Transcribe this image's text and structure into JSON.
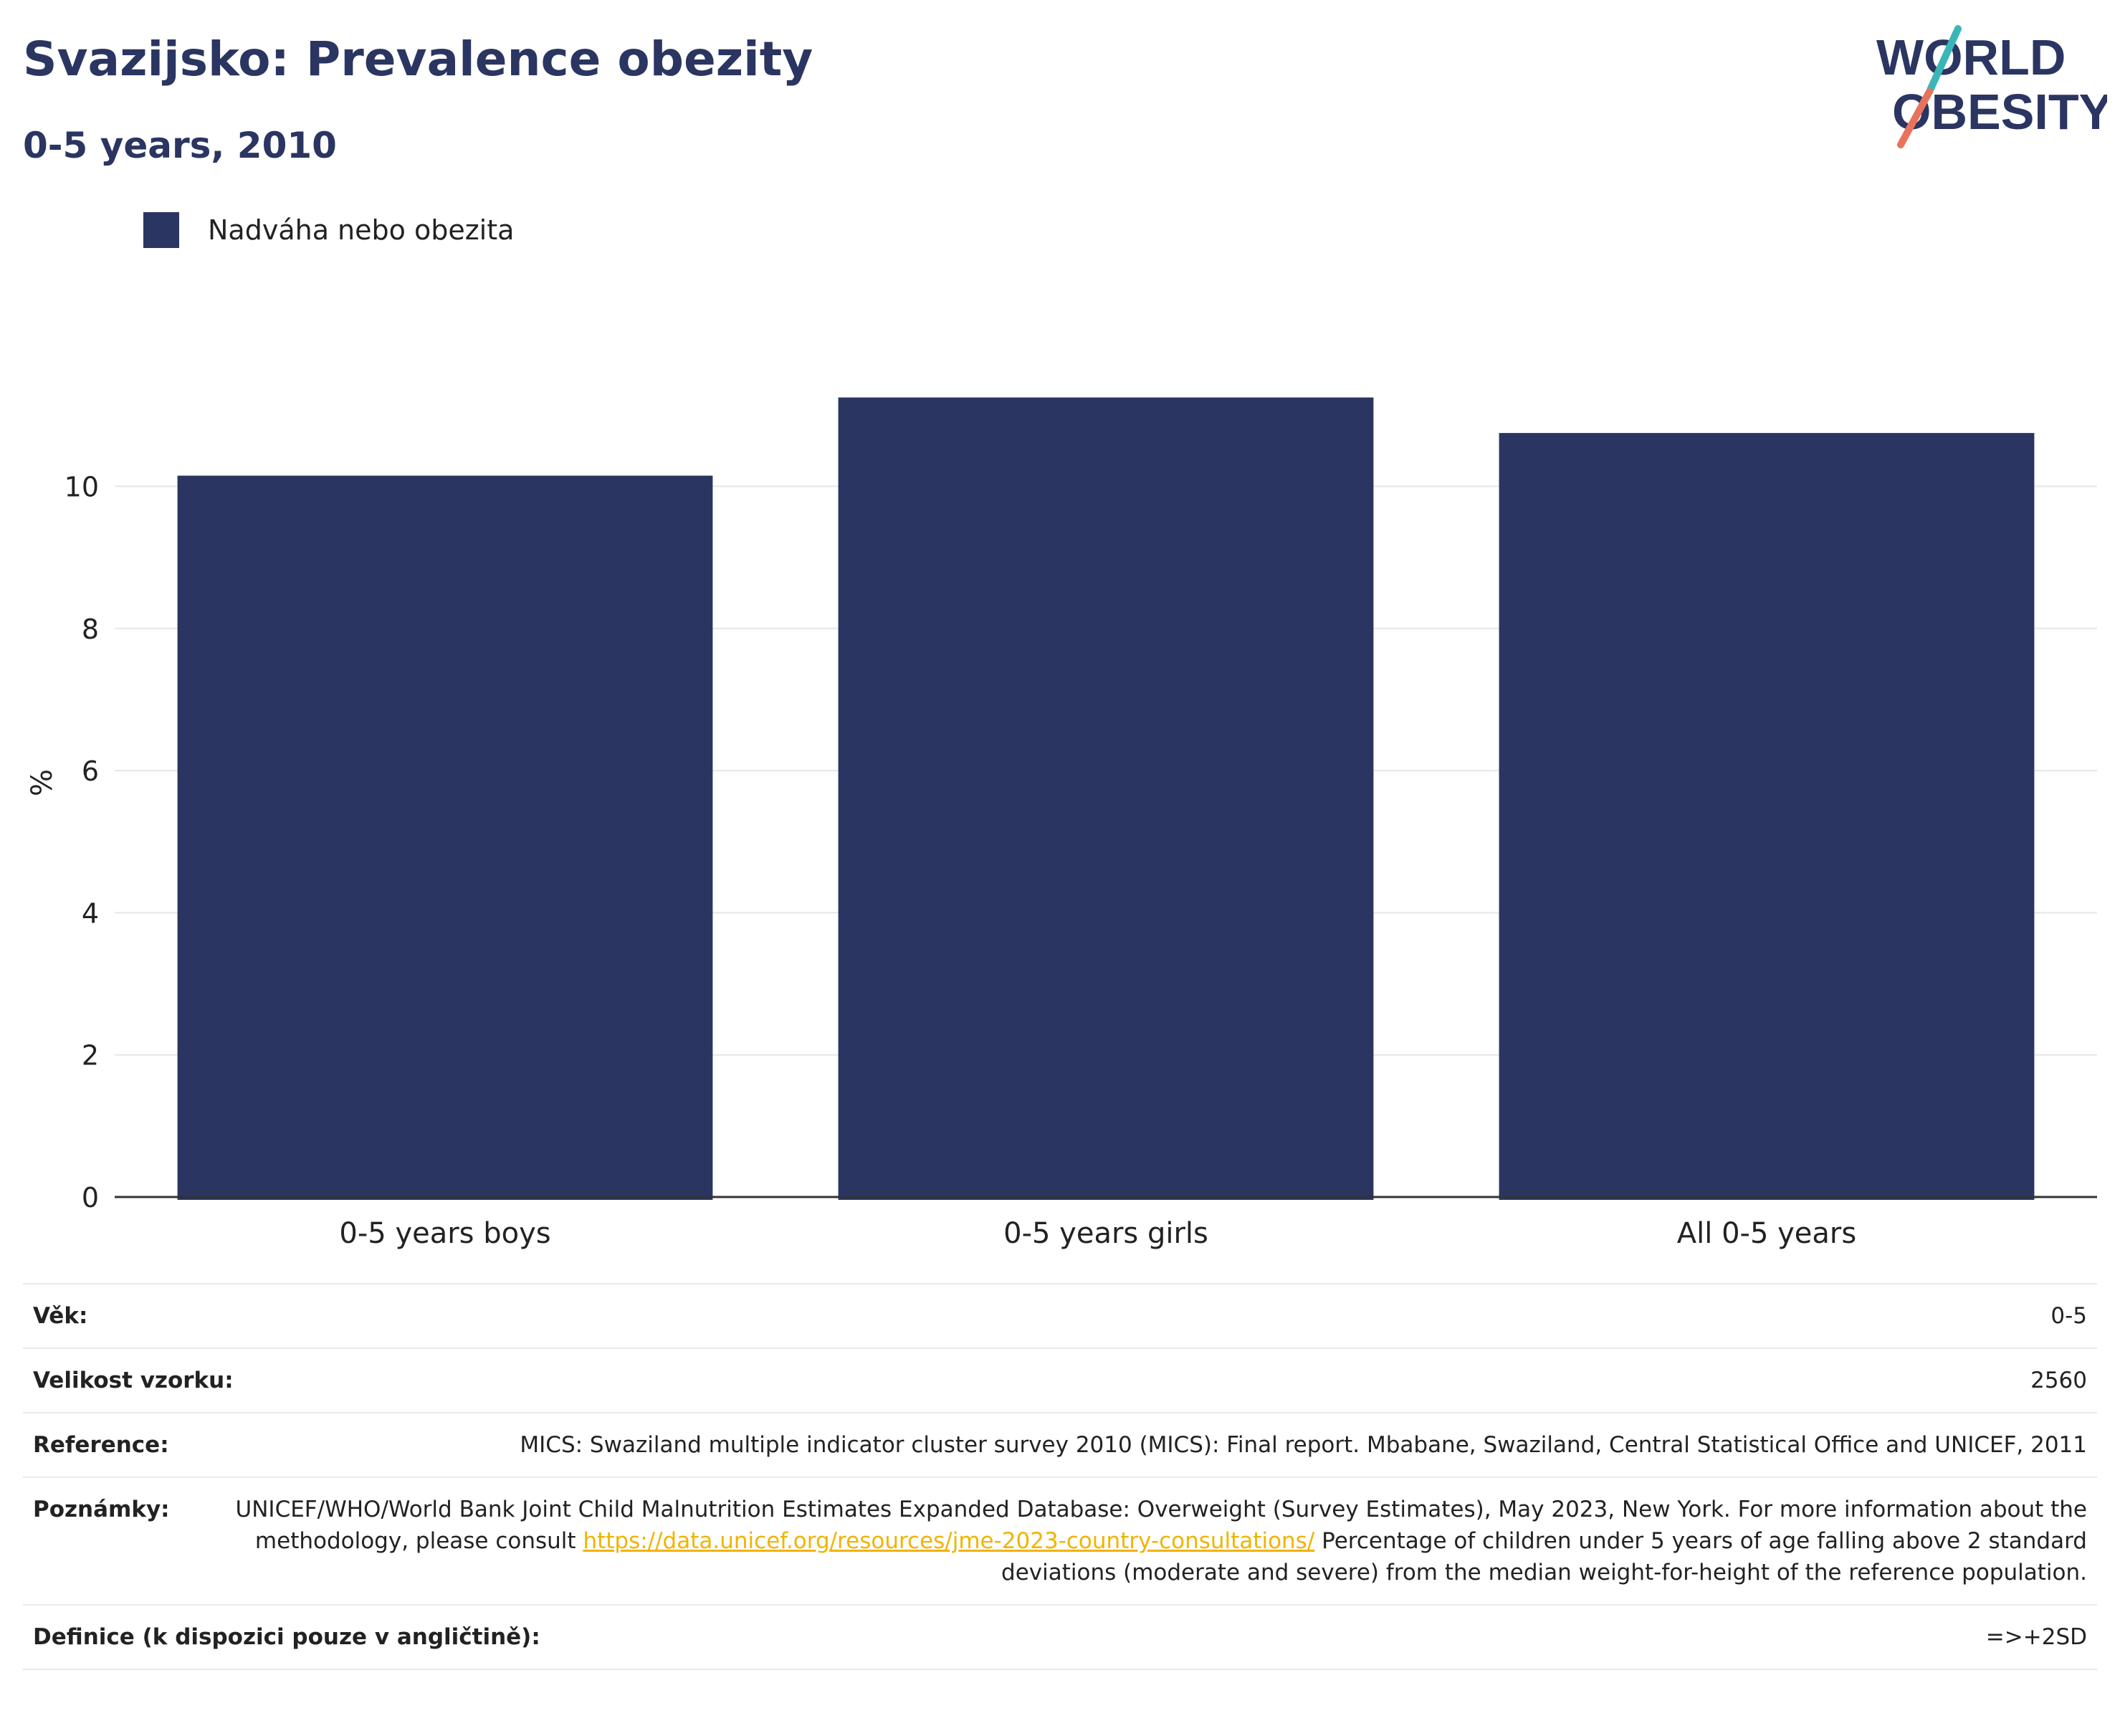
{
  "header": {
    "title": "Svazijsko: Prevalence obezity",
    "subtitle": "0-5 years, 2010"
  },
  "logo": {
    "line1": "WORLD",
    "line2": "OBESITY",
    "colors": {
      "navy": "#2a3561",
      "teal": "#3bb6b8",
      "coral": "#e8735d"
    }
  },
  "legend": {
    "label": "Nadváha nebo obezita",
    "color": "#2a3561"
  },
  "chart_data": {
    "type": "bar",
    "categories": [
      "0-5 years boys",
      "0-5 years girls",
      "All 0-5 years"
    ],
    "series": [
      {
        "name": "Nadváha nebo obezita",
        "values": [
          10.15,
          11.25,
          10.75
        ],
        "color": "#2a3561"
      }
    ],
    "ylabel": "%",
    "ylim": [
      0,
      11.8
    ],
    "yticks": [
      0,
      2,
      4,
      6,
      8,
      10
    ],
    "grid": true,
    "legend_position": "top-left"
  },
  "info": {
    "age": {
      "label": "Věk:",
      "value": "0-5"
    },
    "sample": {
      "label": "Velikost vzorku:",
      "value": "2560"
    },
    "reference": {
      "label": "Reference:",
      "value": "MICS: Swaziland multiple indicator cluster survey 2010 (MICS): Final report. Mbabane, Swaziland, Central Statistical Office and UNICEF, 2011"
    },
    "notes": {
      "label": "Poznámky:",
      "text_before": "UNICEF/WHO/World Bank Joint Child Malnutrition Estimates Expanded Database: Overweight (Survey Estimates), May 2023, New York. For more information about the methodology, please consult ",
      "link": "https://data.unicef.org/resources/jme-2023-country-consultations/",
      "text_after": " Percentage of children under 5 years of age falling above 2 standard deviations (moderate and severe) from the median weight-for-height of the reference population."
    },
    "definition": {
      "label": "Definice (k dispozici pouze v angličtině):",
      "value": "=>+2SD"
    }
  }
}
